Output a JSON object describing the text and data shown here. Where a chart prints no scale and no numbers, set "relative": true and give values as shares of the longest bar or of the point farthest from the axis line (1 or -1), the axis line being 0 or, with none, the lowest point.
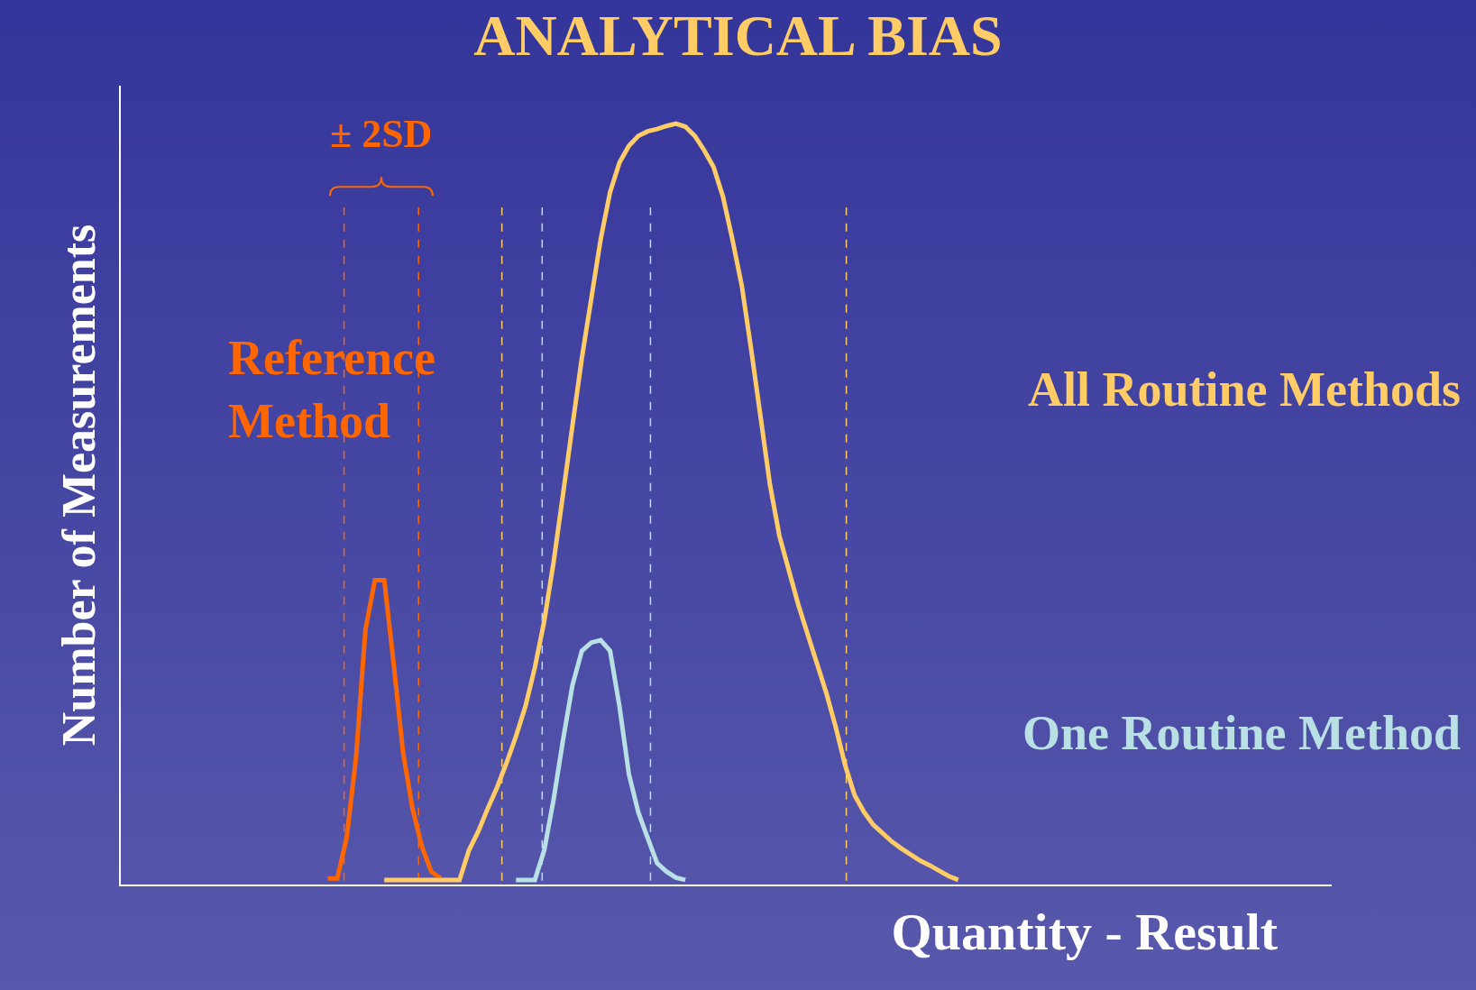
{
  "chart_data": {
    "type": "line",
    "relative": true,
    "title": "ANALYTICAL BIAS",
    "xlabel": "Quantity - Result",
    "ylabel": "Number of Measurements",
    "categories": [
      null,
      null,
      null,
      null,
      null,
      null,
      null,
      null,
      null,
      null,
      null,
      null,
      null,
      null,
      null,
      null,
      null,
      null,
      null,
      null,
      null,
      null,
      null,
      null,
      null,
      null,
      null,
      null,
      null,
      null,
      null,
      null,
      null,
      null,
      null,
      null,
      null,
      null,
      null,
      null,
      null,
      null,
      null,
      null,
      null,
      null,
      null,
      null,
      null,
      null,
      null,
      null,
      null,
      null,
      null,
      null,
      null,
      null,
      null,
      null,
      null,
      null,
      null,
      null,
      null,
      null,
      null,
      null,
      null,
      null,
      null,
      null,
      null,
      null,
      null,
      null,
      null,
      null,
      null,
      null,
      null,
      null,
      null,
      null,
      null,
      null,
      null,
      null,
      null,
      null,
      null,
      null,
      null,
      null,
      null,
      null,
      null,
      null,
      null,
      null,
      null,
      null,
      null,
      null,
      null,
      null,
      null,
      null,
      null,
      null,
      null,
      null,
      null,
      null,
      null,
      null,
      null,
      null,
      null,
      null,
      null,
      null,
      null,
      null,
      null,
      null,
      null,
      null,
      null
    ],
    "series": [
      {
        "name": "Reference Method",
        "color": "#ff6600",
        "values": [
          null,
          null,
          null,
          null,
          null,
          null,
          null,
          null,
          null,
          null,
          null,
          null,
          null,
          null,
          null,
          null,
          null,
          null,
          null,
          null,
          null,
          null,
          0.008,
          0.008,
          0.061,
          0.167,
          0.335,
          0.4,
          0.4,
          0.29,
          0.173,
          0.1,
          0.05,
          0.017,
          0.008,
          null,
          null,
          null,
          null,
          null,
          null,
          null,
          null,
          null,
          null,
          null,
          null,
          null,
          null,
          null,
          null,
          null,
          null,
          null,
          null,
          null,
          null,
          null,
          null,
          null,
          null,
          null,
          null,
          null,
          null,
          null,
          null,
          null,
          null,
          null,
          null,
          null,
          null,
          null,
          null,
          null,
          null,
          null,
          null,
          null,
          null,
          null,
          null,
          null,
          null,
          null,
          null,
          null,
          null,
          null,
          null,
          null,
          null,
          null,
          null,
          null,
          null,
          null,
          null,
          null,
          null,
          null,
          null,
          null,
          null,
          null,
          null,
          null,
          null,
          null,
          null,
          null,
          null,
          null,
          null,
          null,
          null,
          null,
          null,
          null,
          null,
          null,
          null,
          null,
          null,
          null,
          null,
          null,
          null
        ]
      },
      {
        "name": "All Routine Methods",
        "color": "#ffcc66",
        "values": [
          null,
          null,
          null,
          null,
          null,
          null,
          null,
          null,
          null,
          null,
          null,
          null,
          null,
          null,
          null,
          null,
          null,
          null,
          null,
          null,
          null,
          null,
          null,
          null,
          null,
          null,
          null,
          null,
          0.006,
          0.006,
          0.006,
          0.006,
          0.006,
          0.006,
          0.006,
          0.006,
          0.006,
          0.045,
          0.07,
          0.1,
          0.128,
          0.16,
          0.195,
          0.234,
          0.285,
          0.346,
          0.424,
          0.513,
          0.603,
          0.692,
          0.77,
          0.848,
          0.91,
          0.949,
          0.971,
          0.984,
          0.99,
          0.993,
          0.997,
          1,
          0.996,
          0.984,
          0.965,
          0.943,
          0.904,
          0.848,
          0.787,
          0.703,
          0.614,
          0.525,
          0.458,
          0.413,
          0.368,
          0.329,
          0.29,
          0.251,
          0.206,
          0.156,
          0.117,
          0.095,
          0.078,
          0.067,
          0.056,
          0.047,
          0.039,
          0.031,
          0.025,
          0.018,
          0.011,
          0.006,
          null,
          null,
          null,
          null,
          null,
          null,
          null,
          null,
          null,
          null,
          null,
          null,
          null,
          null,
          null,
          null,
          null,
          null,
          null,
          null,
          null,
          null,
          null,
          null,
          null,
          null,
          null,
          null,
          null,
          null,
          null,
          null,
          null,
          null,
          null,
          null,
          null,
          null,
          null
        ]
      },
      {
        "name": "One Routine Method",
        "color": "#b9e0e4",
        "values": [
          null,
          null,
          null,
          null,
          null,
          null,
          null,
          null,
          null,
          null,
          null,
          null,
          null,
          null,
          null,
          null,
          null,
          null,
          null,
          null,
          null,
          null,
          null,
          null,
          null,
          null,
          null,
          null,
          null,
          null,
          null,
          null,
          null,
          null,
          null,
          null,
          null,
          null,
          null,
          null,
          null,
          null,
          0.006,
          0.006,
          0.006,
          0.045,
          0.112,
          0.19,
          0.262,
          0.307,
          0.318,
          0.321,
          0.307,
          0.234,
          0.145,
          0.095,
          0.061,
          0.028,
          0.017,
          0.009,
          0.006,
          null,
          null,
          null,
          null,
          null,
          null,
          null,
          null,
          null,
          null,
          null,
          null,
          null,
          null,
          null,
          null,
          null,
          null,
          null,
          null,
          null,
          null,
          null,
          null,
          null,
          null,
          null,
          null,
          null,
          null,
          null,
          null,
          null,
          null,
          null,
          null,
          null,
          null,
          null,
          null,
          null,
          null,
          null,
          null,
          null,
          null,
          null,
          null,
          null,
          null,
          null,
          null,
          null,
          null,
          null,
          null,
          null,
          null,
          null,
          null,
          null,
          null,
          null,
          null,
          null,
          null,
          null,
          null
        ]
      }
    ],
    "annotations": [
      "± 2SD"
    ]
  }
}
